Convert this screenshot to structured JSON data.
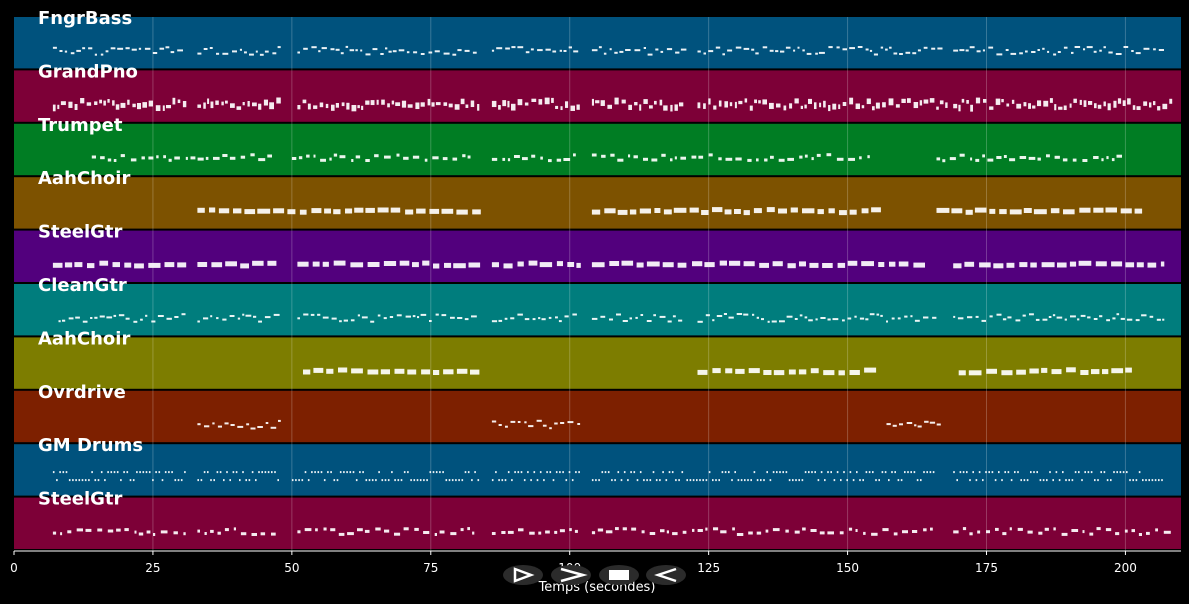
{
  "axis": {
    "xlabel": "Temps (secondes)",
    "xlim": [
      0,
      210
    ],
    "ticks": [
      0,
      25,
      50,
      75,
      100,
      125,
      150,
      175,
      200
    ]
  },
  "tracks": [
    {
      "name": "FngrBass",
      "color": "#00527d",
      "segments": [
        [
          7,
          31,
          "small"
        ],
        [
          33,
          48,
          "small"
        ],
        [
          51,
          84,
          "small"
        ],
        [
          86,
          102,
          "small"
        ],
        [
          104,
          121,
          "small"
        ],
        [
          123,
          168,
          "small"
        ],
        [
          169,
          207,
          "small"
        ]
      ]
    },
    {
      "name": "GrandPno",
      "color": "#7d0037",
      "segments": [
        [
          7,
          31,
          "dense"
        ],
        [
          33,
          48,
          "dense"
        ],
        [
          51,
          84,
          "dense"
        ],
        [
          86,
          102,
          "dense"
        ],
        [
          104,
          121,
          "dense"
        ],
        [
          123,
          168,
          "dense"
        ],
        [
          169,
          209,
          "dense"
        ]
      ]
    },
    {
      "name": "Trumpet",
      "color": "#007d23",
      "segments": [
        [
          14,
          47,
          "medium"
        ],
        [
          50,
          83,
          "medium"
        ],
        [
          86,
          102,
          "medium"
        ],
        [
          104,
          124,
          "medium"
        ],
        [
          125,
          154,
          "medium"
        ],
        [
          166,
          200,
          "medium"
        ]
      ]
    },
    {
      "name": "AahChoir",
      "color": "#7d5200",
      "segments": [
        [
          33,
          84,
          "long"
        ],
        [
          104,
          156,
          "long"
        ],
        [
          166,
          203,
          "long"
        ]
      ]
    },
    {
      "name": "SteelGtr",
      "color": "#52007d",
      "segments": [
        [
          7,
          31,
          "long"
        ],
        [
          33,
          48,
          "long"
        ],
        [
          51,
          84,
          "long"
        ],
        [
          86,
          102,
          "long"
        ],
        [
          104,
          121,
          "long"
        ],
        [
          122,
          165,
          "long"
        ],
        [
          169,
          207,
          "long"
        ]
      ]
    },
    {
      "name": "CleanGtr",
      "color": "#007d7d",
      "segments": [
        [
          8,
          31,
          "small"
        ],
        [
          33,
          48,
          "small"
        ],
        [
          51,
          84,
          "small"
        ],
        [
          86,
          102,
          "small"
        ],
        [
          104,
          121,
          "small"
        ],
        [
          123,
          166,
          "small"
        ],
        [
          169,
          207,
          "small"
        ]
      ]
    },
    {
      "name": "AahChoir",
      "color": "#7d7d00",
      "segments": [
        [
          52,
          84,
          "long"
        ],
        [
          123,
          156,
          "long"
        ],
        [
          170,
          202,
          "long"
        ]
      ]
    },
    {
      "name": "Ovrdrive",
      "color": "#7d2000",
      "segments": [
        [
          33,
          48,
          "small"
        ],
        [
          86,
          102,
          "small"
        ],
        [
          157,
          167,
          "small"
        ]
      ]
    },
    {
      "name": "GM Drums",
      "color": "#00527d",
      "segments": [
        [
          7,
          31,
          "drum"
        ],
        [
          33,
          48,
          "drum"
        ],
        [
          50,
          84,
          "drum"
        ],
        [
          86,
          102,
          "drum"
        ],
        [
          104,
          121,
          "drum"
        ],
        [
          121,
          166,
          "drum"
        ],
        [
          169,
          207,
          "drum"
        ]
      ]
    },
    {
      "name": "SteelGtr",
      "color": "#7d0037",
      "segments": [
        [
          7,
          31,
          "medium"
        ],
        [
          33,
          48,
          "medium"
        ],
        [
          51,
          84,
          "medium"
        ],
        [
          86,
          102,
          "medium"
        ],
        [
          104,
          121,
          "medium"
        ],
        [
          122,
          166,
          "medium"
        ],
        [
          169,
          209,
          "medium"
        ]
      ]
    }
  ],
  "transport": {
    "icons": [
      "play-icon",
      "fast-forward-icon",
      "stop-icon",
      "rewind-icon"
    ]
  }
}
